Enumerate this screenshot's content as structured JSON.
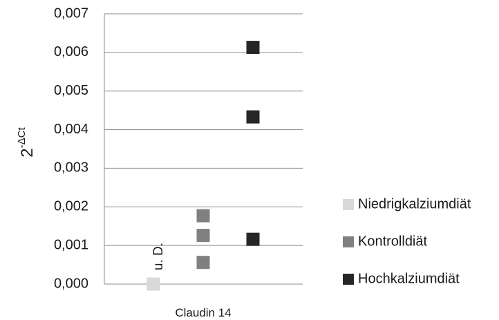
{
  "chart_data": {
    "type": "scatter",
    "categories": [
      "Claudin 14"
    ],
    "ylabel": {
      "base": "2",
      "sup": "-ΔCt"
    },
    "ylim": [
      0,
      0.007
    ],
    "yticks": [
      0.0,
      0.001,
      0.002,
      0.003,
      0.004,
      0.005,
      0.006,
      0.007
    ],
    "ytick_labels": [
      "0,000",
      "0,001",
      "0,002",
      "0,003",
      "0,004",
      "0,005",
      "0,006",
      "0,007"
    ],
    "grid": true,
    "legend_position": "right",
    "series": [
      {
        "name": "Niedrigkalziumdiät",
        "color": "#d9d9d9",
        "values": [
          0.0
        ]
      },
      {
        "name": "Kontrolldiät",
        "color": "#808080",
        "values": [
          0.00056,
          0.00126,
          0.00177
        ]
      },
      {
        "name": "Hochkalziumdiät",
        "color": "#262626",
        "values": [
          0.00116,
          0.00433,
          0.00613
        ]
      }
    ],
    "annotations": [
      {
        "text": "u. D.",
        "series": "Niedrigkalziumdiät"
      }
    ]
  }
}
